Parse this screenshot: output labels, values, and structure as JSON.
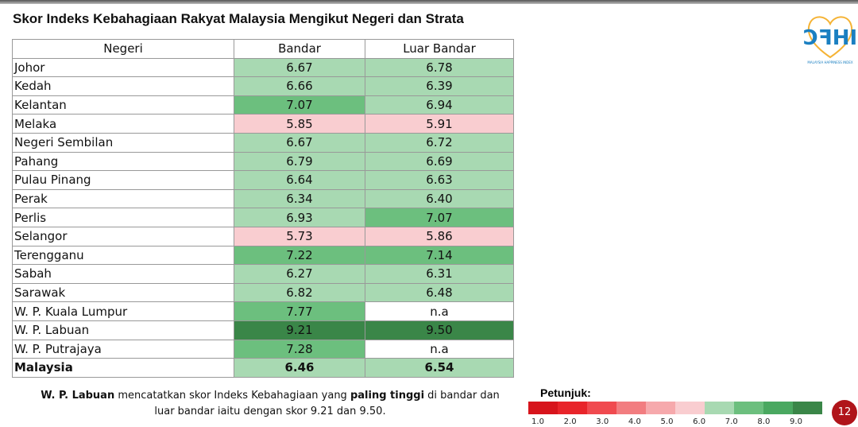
{
  "header": {
    "title": "Skor Indeks Kebahagiaan Rakyat Malaysia Mengikut Negeri dan Strata",
    "logo_text": "MALAYSIA HAPPINESS INDEX"
  },
  "table": {
    "columns": [
      "Negeri",
      "Bandar",
      "Luar Bandar"
    ],
    "rows": [
      [
        "Johor",
        "6.67",
        "6.78"
      ],
      [
        "Kedah",
        "6.66",
        "6.39"
      ],
      [
        "Kelantan",
        "7.07",
        "6.94"
      ],
      [
        "Melaka",
        "5.85",
        "5.91"
      ],
      [
        "Negeri Sembilan",
        "6.67",
        "6.72"
      ],
      [
        "Pahang",
        "6.79",
        "6.69"
      ],
      [
        "Pulau Pinang",
        "6.64",
        "6.63"
      ],
      [
        "Perak",
        "6.34",
        "6.40"
      ],
      [
        "Perlis",
        "6.93",
        "7.07"
      ],
      [
        "Selangor",
        "5.73",
        "5.86"
      ],
      [
        "Terengganu",
        "7.22",
        "7.14"
      ],
      [
        "Sabah",
        "6.27",
        "6.31"
      ],
      [
        "Sarawak",
        "6.82",
        "6.48"
      ],
      [
        "W. P. Kuala Lumpur",
        "7.77",
        "n.a"
      ],
      [
        "W. P. Labuan",
        "9.21",
        "9.50"
      ],
      [
        "W. P. Putrajaya",
        "7.28",
        "n.a"
      ],
      [
        "Malaysia",
        "6.46",
        "6.54"
      ]
    ]
  },
  "note": [
    {
      "text": "W. P. Labuan",
      "bold": true
    },
    {
      "text": " mencatatkan skor Indeks Kebahagiaan yang ",
      "bold": false
    },
    {
      "text": "paling tinggi",
      "bold": true
    },
    {
      "text": " di bandar dan luar bandar iaitu dengan skor 9.21 dan 9.50.",
      "bold": false
    }
  ],
  "legend": {
    "title": "Petunjuk:",
    "colors": [
      "#d7141c",
      "#e8242a",
      "#f04a4f",
      "#f27d80",
      "#f6a9ac",
      "#f9cdd0",
      "#a8d9b2",
      "#6cbf7e",
      "#4aa860",
      "#3a8648"
    ],
    "ticks": [
      {
        "value": 1,
        "label": "1.0"
      },
      {
        "value": 2,
        "label": "2.0"
      },
      {
        "value": 3,
        "label": "3.0"
      },
      {
        "value": 4,
        "label": "4.0"
      },
      {
        "value": 5,
        "label": "5.0"
      },
      {
        "value": 6,
        "label": "6.0"
      },
      {
        "value": 7,
        "label": "7.0"
      },
      {
        "value": 8,
        "label": "8.0"
      },
      {
        "value": 9,
        "label": "9.0"
      }
    ]
  },
  "page_number": "12"
}
